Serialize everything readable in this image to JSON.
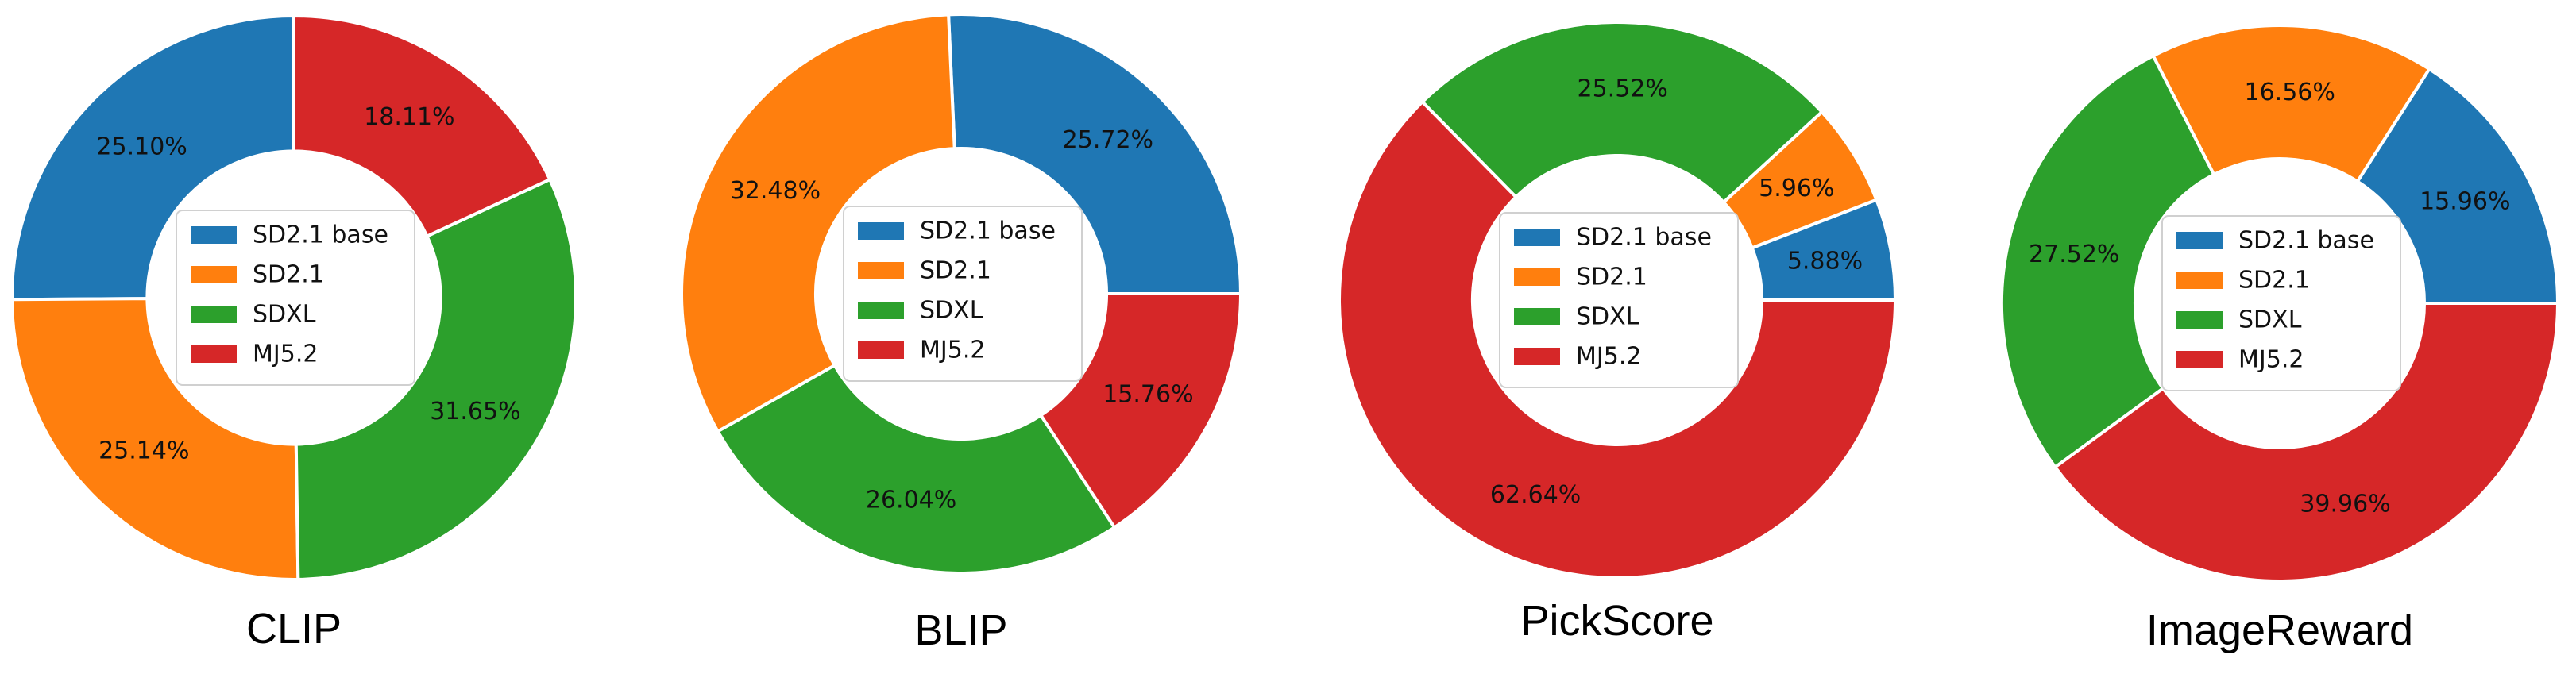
{
  "chart_data": [
    {
      "type": "pie",
      "title": "CLIP",
      "categories": [
        "SD2.1 base",
        "SD2.1",
        "SDXL",
        "MJ5.2"
      ],
      "values": [
        25.1,
        25.14,
        31.65,
        18.11
      ],
      "labels": [
        "25.10%",
        "25.14%",
        "31.65%",
        "18.11%"
      ],
      "colors": [
        "#1f77b4",
        "#ff7f0e",
        "#2ca02c",
        "#d62728"
      ],
      "donut": true,
      "start_angle_deg": 90,
      "direction": "counterclockwise",
      "legend": "center"
    },
    {
      "type": "pie",
      "title": "BLIP",
      "categories": [
        "SD2.1 base",
        "SD2.1",
        "SDXL",
        "MJ5.2"
      ],
      "values": [
        25.72,
        32.48,
        26.04,
        15.76
      ],
      "labels": [
        "25.72%",
        "32.48%",
        "26.04%",
        "15.76%"
      ],
      "colors": [
        "#1f77b4",
        "#ff7f0e",
        "#2ca02c",
        "#d62728"
      ],
      "donut": true,
      "start_angle_deg": 0,
      "direction": "counterclockwise",
      "legend": "center"
    },
    {
      "type": "pie",
      "title": "PickScore",
      "categories": [
        "SD2.1 base",
        "SD2.1",
        "SDXL",
        "MJ5.2"
      ],
      "values": [
        5.88,
        5.96,
        25.52,
        62.64
      ],
      "labels": [
        "5.88%",
        "5.96%",
        "25.52%",
        "62.64%"
      ],
      "colors": [
        "#1f77b4",
        "#ff7f0e",
        "#2ca02c",
        "#d62728"
      ],
      "donut": true,
      "start_angle_deg": 0,
      "direction": "counterclockwise",
      "legend": "center"
    },
    {
      "type": "pie",
      "title": "ImageReward",
      "categories": [
        "SD2.1 base",
        "SD2.1",
        "SDXL",
        "MJ5.2"
      ],
      "values": [
        15.96,
        16.56,
        27.52,
        39.96
      ],
      "labels": [
        "15.96%",
        "16.56%",
        "27.52%",
        "39.96%"
      ],
      "colors": [
        "#1f77b4",
        "#ff7f0e",
        "#2ca02c",
        "#d62728"
      ],
      "donut": true,
      "start_angle_deg": 0,
      "direction": "counterclockwise",
      "legend": "center"
    }
  ]
}
